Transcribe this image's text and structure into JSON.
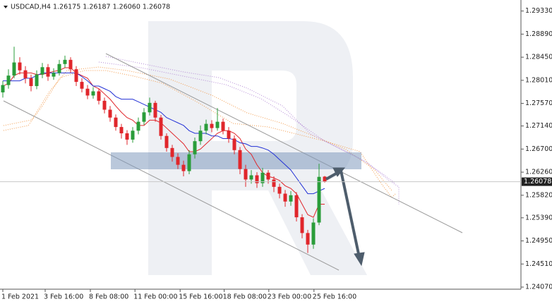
{
  "chart_data": {
    "type": "candlestick",
    "header": "USDCAD,H4  1.26175 1.26187 1.26060 1.26078",
    "ylim": [
      1.2403,
      1.2954
    ],
    "xlim": [
      -0.5,
      91.75
    ],
    "yticks": [
      {
        "value": 1.2933,
        "label": "1.29330"
      },
      {
        "value": 1.2889,
        "label": "1.28890"
      },
      {
        "value": 1.2845,
        "label": "1.28450"
      },
      {
        "value": 1.2801,
        "label": "1.28010"
      },
      {
        "value": 1.2757,
        "label": "1.27570"
      },
      {
        "value": 1.2714,
        "label": "1.27140"
      },
      {
        "value": 1.267,
        "label": "1.26700"
      },
      {
        "value": 1.2626,
        "label": "1.26260"
      },
      {
        "value": 1.2582,
        "label": "1.25820"
      },
      {
        "value": 1.2539,
        "label": "1.25390"
      },
      {
        "value": 1.2495,
        "label": "1.24950"
      },
      {
        "value": 1.2451,
        "label": "1.24510"
      },
      {
        "value": 1.2407,
        "label": "1.24070"
      }
    ],
    "xticks": [
      {
        "value": 0,
        "label": "1 Feb 2021"
      },
      {
        "value": 7.5,
        "label": "3 Feb 16:00"
      },
      {
        "value": 15.5,
        "label": "8 Feb 08:00"
      },
      {
        "value": 23.4,
        "label": "11 Feb 00:00"
      },
      {
        "value": 31.4,
        "label": "15 Feb 16:00"
      },
      {
        "value": 39.2,
        "label": "18 Feb 08:00"
      },
      {
        "value": 47.1,
        "label": "23 Feb 00:00"
      },
      {
        "value": 55.1,
        "label": "25 Feb 16:00"
      }
    ],
    "up_color": "#2a9d3a",
    "down_color": "#e0262b",
    "open": [
      1.2778,
      1.2792,
      1.281,
      1.2835,
      1.282,
      1.2805,
      1.279,
      1.2812,
      1.2826,
      1.2808,
      1.2815,
      1.2832,
      1.284,
      1.2822,
      1.2798,
      1.2785,
      1.2772,
      1.278,
      1.2762,
      1.2745,
      1.273,
      1.2712,
      1.27,
      1.2688,
      1.2705,
      1.2722,
      1.274,
      1.2758,
      1.273,
      1.2695,
      1.2672,
      1.2655,
      1.264,
      1.2628,
      1.266,
      1.2685,
      1.2705,
      1.2718,
      1.271,
      1.2722,
      1.2705,
      1.269,
      1.2668,
      1.2632,
      1.2612,
      1.262,
      1.2605,
      1.2625,
      1.2612,
      1.2598,
      1.2585,
      1.257,
      1.2582,
      1.254,
      1.251,
      1.2488,
      1.253,
      1.26175
    ],
    "high": [
      1.28,
      1.2822,
      1.2865,
      1.2845,
      1.2828,
      1.2812,
      1.282,
      1.2834,
      1.2832,
      1.2824,
      1.284,
      1.2848,
      1.2845,
      1.2828,
      1.2805,
      1.2792,
      1.2788,
      1.2785,
      1.2768,
      1.2752,
      1.2736,
      1.2718,
      1.2706,
      1.2712,
      1.273,
      1.2748,
      1.2768,
      1.2762,
      1.2735,
      1.27,
      1.2678,
      1.2662,
      1.2648,
      1.2668,
      1.2692,
      1.2715,
      1.2726,
      1.2725,
      1.2748,
      1.2728,
      1.2712,
      1.2696,
      1.2674,
      1.264,
      1.263,
      1.2626,
      1.2634,
      1.263,
      1.2618,
      1.2604,
      1.2592,
      1.259,
      1.2588,
      1.2546,
      1.2516,
      1.2538,
      1.2642,
      1.26187
    ],
    "low": [
      1.2768,
      1.2785,
      1.2805,
      1.2812,
      1.2795,
      1.278,
      1.2784,
      1.2805,
      1.28,
      1.2802,
      1.281,
      1.2825,
      1.2815,
      1.279,
      1.2778,
      1.2765,
      1.2766,
      1.2755,
      1.2738,
      1.2722,
      1.2705,
      1.269,
      1.2678,
      1.2682,
      1.2698,
      1.2716,
      1.2734,
      1.2722,
      1.2688,
      1.2665,
      1.2646,
      1.2632,
      1.2618,
      1.2622,
      1.2652,
      1.2678,
      1.2698,
      1.2702,
      1.2705,
      1.2698,
      1.2682,
      1.266,
      1.2622,
      1.2598,
      1.2604,
      1.2596,
      1.2598,
      1.2604,
      1.2588,
      1.2576,
      1.256,
      1.2562,
      1.2532,
      1.25,
      1.2472,
      1.248,
      1.2525,
      1.2606
    ],
    "close": [
      1.2792,
      1.281,
      1.2835,
      1.282,
      1.2805,
      1.279,
      1.2812,
      1.2826,
      1.2808,
      1.2815,
      1.2832,
      1.284,
      1.2822,
      1.2798,
      1.2785,
      1.2772,
      1.278,
      1.2762,
      1.2745,
      1.273,
      1.2712,
      1.27,
      1.2688,
      1.2705,
      1.2722,
      1.274,
      1.2758,
      1.273,
      1.2695,
      1.2672,
      1.2655,
      1.264,
      1.2628,
      1.266,
      1.2685,
      1.2705,
      1.2718,
      1.271,
      1.2722,
      1.2705,
      1.269,
      1.2668,
      1.2632,
      1.2612,
      1.262,
      1.2605,
      1.2625,
      1.2612,
      1.2598,
      1.2585,
      1.257,
      1.2582,
      1.254,
      1.251,
      1.2488,
      1.253,
      1.2617,
      1.26078
    ],
    "lines": [
      {
        "color": "#e0262b",
        "values": [
          1.279,
          1.2795,
          1.281,
          1.2815,
          1.2815,
          1.2815,
          1.2812,
          1.2812,
          1.2815,
          1.2818,
          1.282,
          1.2825,
          1.2825,
          1.2815,
          1.281,
          1.2805,
          1.279,
          1.2785,
          1.2775,
          1.2765,
          1.2752,
          1.274,
          1.273,
          1.2725,
          1.2715,
          1.2715,
          1.2725,
          1.2725,
          1.272,
          1.271,
          1.27,
          1.269,
          1.268,
          1.2665,
          1.2665,
          1.267,
          1.268,
          1.269,
          1.27,
          1.2705,
          1.2705,
          1.27,
          1.269,
          1.267,
          1.266,
          1.264,
          1.2625,
          1.2618,
          1.2615,
          1.261,
          1.26,
          1.2595,
          1.2585,
          1.2565,
          1.2545,
          1.254,
          1.2565,
          1.2565
        ]
      },
      {
        "color": "#2432d6",
        "values": [
          1.28,
          1.28,
          1.28,
          1.28,
          1.2805,
          1.2805,
          1.281,
          1.2815,
          1.2815,
          1.2815,
          1.2815,
          1.2815,
          1.2815,
          1.2815,
          1.2808,
          1.28,
          1.279,
          1.279,
          1.2785,
          1.278,
          1.277,
          1.2765,
          1.2765,
          1.2765,
          1.276,
          1.2755,
          1.275,
          1.2745,
          1.274,
          1.273,
          1.2725,
          1.272,
          1.2715,
          1.2705,
          1.27,
          1.27,
          1.27,
          1.2695,
          1.2695,
          1.269,
          1.269,
          1.2688,
          1.2682,
          1.268,
          1.2675,
          1.2675,
          1.2672,
          1.2668,
          1.266,
          1.265,
          1.264,
          1.263,
          1.2615,
          1.26,
          1.2585,
          1.2585,
          1.259,
          1.2595
        ]
      }
    ]
  }
}
